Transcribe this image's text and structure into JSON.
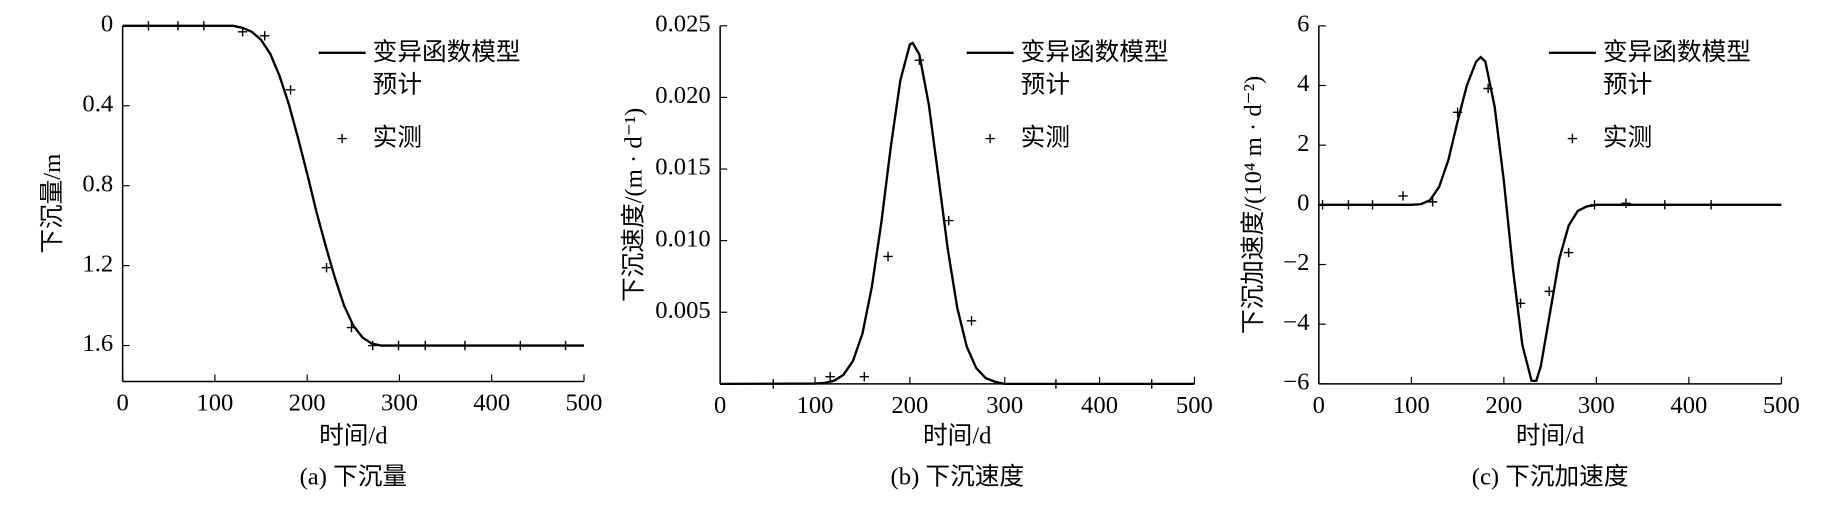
{
  "chart_data": [
    {
      "type": "line",
      "caption": "(a) 下沉量",
      "x_label": "时间/d",
      "y_label": "下沉量/m",
      "xlim": [
        0,
        500
      ],
      "xticks": [
        0,
        100,
        200,
        300,
        400,
        500
      ],
      "ylim": [
        0,
        1.78
      ],
      "invert_y": true,
      "yticks": [
        0,
        0.4,
        0.8,
        1.2,
        1.6
      ],
      "series": [
        {
          "name": "变异函数模型预计",
          "type": "line",
          "color": "#000000",
          "x": [
            0,
            100,
            120,
            130,
            140,
            150,
            160,
            170,
            180,
            190,
            200,
            210,
            220,
            230,
            240,
            250,
            260,
            270,
            280,
            300,
            500
          ],
          "values": [
            0,
            0,
            0,
            0.01,
            0.03,
            0.07,
            0.14,
            0.25,
            0.39,
            0.56,
            0.74,
            0.93,
            1.1,
            1.26,
            1.4,
            1.5,
            1.56,
            1.59,
            1.6,
            1.6,
            1.6
          ]
        },
        {
          "name": "实测",
          "type": "scatter",
          "color": "#000000",
          "x": [
            28,
            60,
            88,
            130,
            154,
            182,
            221,
            248,
            271,
            299,
            328,
            371,
            431,
            480
          ],
          "values": [
            0,
            0,
            0,
            0.03,
            0.05,
            0.32,
            1.21,
            1.51,
            1.6,
            1.6,
            1.6,
            1.6,
            1.6,
            1.6
          ]
        }
      ]
    },
    {
      "type": "line",
      "caption": "(b) 下沉速度",
      "x_label": "时间/d",
      "y_label": "下沉速度/(m · d⁻¹)",
      "xlim": [
        0,
        500
      ],
      "xticks": [
        0,
        100,
        200,
        300,
        400,
        500
      ],
      "ylim": [
        0,
        0.025
      ],
      "yticks": [
        0.005,
        {
          "value": 0.01,
          "label": "0.010"
        },
        0.015,
        {
          "value": 0.02,
          "label": "0.020"
        },
        0.025
      ],
      "series": [
        {
          "name": "变异函数模型预计",
          "type": "line",
          "color": "#000000",
          "x": [
            0,
            100,
            110,
            120,
            130,
            140,
            150,
            160,
            170,
            180,
            190,
            200,
            203,
            210,
            220,
            230,
            240,
            250,
            260,
            270,
            280,
            290,
            300,
            500
          ],
          "values": [
            0,
            2e-05,
            7e-05,
            0.00022,
            0.00063,
            0.0016,
            0.0035,
            0.0068,
            0.0113,
            0.0166,
            0.0212,
            0.0237,
            0.0238,
            0.023,
            0.0195,
            0.0145,
            0.0094,
            0.0053,
            0.0026,
            0.0011,
            0.0004,
            0.00014,
            0,
            0
          ]
        },
        {
          "name": "实测",
          "type": "scatter",
          "color": "#000000",
          "x": [
            56,
            116,
            152,
            177,
            210,
            241,
            265,
            354,
            455
          ],
          "values": [
            0,
            0.0005,
            0.0005,
            0.0089,
            0.0226,
            0.0114,
            0.0044,
            0,
            0
          ]
        }
      ]
    },
    {
      "type": "line",
      "caption": "(c) 下沉加速度",
      "x_label": "时间/d",
      "y_label": "下沉加速度/(10⁴ m · d⁻²)",
      "xlim": [
        0,
        500
      ],
      "xticks": [
        0,
        100,
        200,
        300,
        400,
        500
      ],
      "ylim": [
        -6,
        6
      ],
      "yticks": [
        {
          "value": -6,
          "label": "−6"
        },
        {
          "value": -4,
          "label": "−4"
        },
        {
          "value": -2,
          "label": "−2"
        },
        0,
        2,
        4,
        6
      ],
      "series": [
        {
          "name": "变异函数模型预计",
          "type": "line",
          "color": "#000000",
          "x": [
            0,
            100,
            110,
            120,
            130,
            140,
            150,
            160,
            170,
            175,
            180,
            190,
            200,
            210,
            220,
            230,
            235,
            240,
            250,
            260,
            270,
            280,
            290,
            300,
            500
          ],
          "values": [
            0,
            0,
            0.02,
            0.15,
            0.6,
            1.5,
            2.8,
            4.0,
            4.8,
            4.95,
            4.8,
            3.3,
            0.8,
            -2.2,
            -4.7,
            -5.9,
            -5.9,
            -5.4,
            -3.6,
            -1.8,
            -0.7,
            -0.2,
            -0.05,
            0,
            0
          ]
        },
        {
          "name": "实测",
          "type": "scatter",
          "color": "#000000",
          "x": [
            4,
            32,
            58,
            91,
            123,
            150,
            183,
            218,
            249,
            270,
            298,
            332,
            374,
            424
          ],
          "values": [
            0,
            0,
            0,
            0.3,
            0.1,
            3.1,
            3.9,
            -3.3,
            -2.9,
            -1.6,
            0,
            0.05,
            0,
            0
          ]
        }
      ]
    }
  ]
}
